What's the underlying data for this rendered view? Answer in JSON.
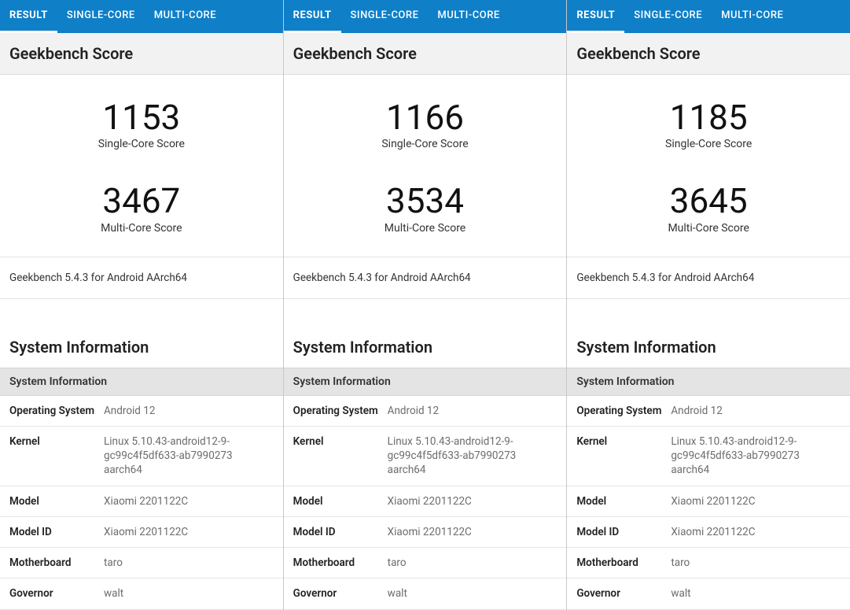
{
  "colors": {
    "tab_bg": "#0f7fc8",
    "tab_text": "#ffffff",
    "section_bg": "#f2f2f2",
    "subheader_bg": "#e4e4e4",
    "border": "#e3e3e3",
    "value_text": "#6c6c6c",
    "key_text": "#222222"
  },
  "tabs": [
    {
      "label": "RESULT",
      "active": true
    },
    {
      "label": "SINGLE-CORE",
      "active": false
    },
    {
      "label": "MULTI-CORE",
      "active": false
    }
  ],
  "labels": {
    "score_section": "Geekbench Score",
    "single_core": "Single-Core Score",
    "multi_core": "Multi-Core Score",
    "sysinfo_section": "System Information",
    "sysinfo_subheader": "System Information"
  },
  "sysinfo_keys": {
    "os": "Operating System",
    "kernel": "Kernel",
    "model": "Model",
    "model_id": "Model ID",
    "motherboard": "Motherboard",
    "governor": "Governor"
  },
  "panels": [
    {
      "single_core": "1153",
      "multi_core": "3467",
      "version": "Geekbench 5.4.3 for Android AArch64",
      "sys": {
        "os": "Android 12",
        "kernel": "Linux 5.10.43-android12-9-gc99c4f5df633-ab7990273 aarch64",
        "model": "Xiaomi 2201122C",
        "model_id": "Xiaomi 2201122C",
        "motherboard": "taro",
        "governor": "walt"
      }
    },
    {
      "single_core": "1166",
      "multi_core": "3534",
      "version": "Geekbench 5.4.3 for Android AArch64",
      "sys": {
        "os": "Android 12",
        "kernel": "Linux 5.10.43-android12-9-gc99c4f5df633-ab7990273 aarch64",
        "model": "Xiaomi 2201122C",
        "model_id": "Xiaomi 2201122C",
        "motherboard": "taro",
        "governor": "walt"
      }
    },
    {
      "single_core": "1185",
      "multi_core": "3645",
      "version": "Geekbench 5.4.3 for Android AArch64",
      "sys": {
        "os": "Android 12",
        "kernel": "Linux 5.10.43-android12-9-gc99c4f5df633-ab7990273 aarch64",
        "model": "Xiaomi 2201122C",
        "model_id": "Xiaomi 2201122C",
        "motherboard": "taro",
        "governor": "walt"
      }
    }
  ]
}
